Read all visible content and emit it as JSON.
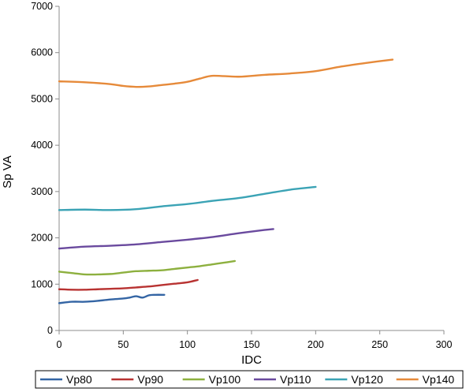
{
  "chart_data": {
    "type": "line",
    "xlabel": "IDC",
    "ylabel": "Sp VA",
    "xlim": [
      0,
      300
    ],
    "ylim": [
      0,
      7000
    ],
    "x_ticks": [
      "0",
      "50",
      "100",
      "150",
      "200",
      "250",
      "300"
    ],
    "y_ticks": [
      "0",
      "1000",
      "2000",
      "3000",
      "4000",
      "5000",
      "6000",
      "7000"
    ],
    "grid": false,
    "legend_position": "bottom",
    "series": [
      {
        "name": "Vp80",
        "color": "#3465a4",
        "x": [
          0,
          10,
          20,
          30,
          40,
          50,
          55,
          60,
          65,
          70,
          75,
          82
        ],
        "y": [
          590,
          620,
          620,
          640,
          670,
          690,
          710,
          740,
          710,
          760,
          770,
          770
        ]
      },
      {
        "name": "Vp90",
        "color": "#b83332",
        "x": [
          0,
          10,
          20,
          30,
          40,
          50,
          60,
          70,
          80,
          90,
          100,
          108
        ],
        "y": [
          890,
          880,
          880,
          890,
          900,
          910,
          930,
          950,
          980,
          1010,
          1040,
          1090
        ]
      },
      {
        "name": "Vp100",
        "color": "#8db03f",
        "x": [
          0,
          10,
          20,
          30,
          40,
          50,
          60,
          70,
          80,
          90,
          100,
          110,
          120,
          130,
          137
        ],
        "y": [
          1270,
          1240,
          1210,
          1210,
          1220,
          1250,
          1280,
          1290,
          1300,
          1330,
          1360,
          1390,
          1430,
          1470,
          1500
        ]
      },
      {
        "name": "Vp110",
        "color": "#6a4a9e",
        "x": [
          0,
          20,
          40,
          60,
          80,
          100,
          120,
          140,
          160,
          167
        ],
        "y": [
          1770,
          1810,
          1830,
          1860,
          1910,
          1960,
          2020,
          2100,
          2170,
          2190
        ]
      },
      {
        "name": "Vp120",
        "color": "#3ba3b5",
        "x": [
          0,
          20,
          40,
          60,
          80,
          100,
          120,
          140,
          160,
          180,
          200
        ],
        "y": [
          2600,
          2610,
          2600,
          2620,
          2680,
          2730,
          2800,
          2860,
          2950,
          3040,
          3100
        ]
      },
      {
        "name": "Vp140",
        "color": "#e68a3a",
        "x": [
          0,
          20,
          40,
          50,
          60,
          70,
          80,
          90,
          100,
          110,
          120,
          140,
          160,
          180,
          200,
          220,
          240,
          260
        ],
        "y": [
          5380,
          5360,
          5320,
          5280,
          5260,
          5270,
          5300,
          5330,
          5370,
          5440,
          5500,
          5480,
          5520,
          5550,
          5600,
          5700,
          5780,
          5850
        ]
      }
    ]
  }
}
